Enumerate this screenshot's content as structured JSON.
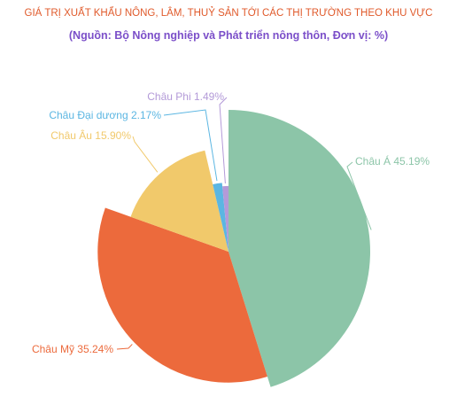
{
  "chart_data": {
    "type": "pie",
    "title": "GIÁ TRỊ XUẤT KHẨU NÔNG, LÂM, THUỶ SẢN TỚI CÁC THỊ TRƯỜNG THEO KHU VỰC",
    "subtitle": "(Nguồn:  Bộ Nông nghiệp và Phát triển nông thôn, Đơn vị: %)",
    "slices": [
      {
        "name": "Châu Á",
        "value": 45.19,
        "label": "Châu Á 45.19%",
        "color": "#8cc5a8"
      },
      {
        "name": "Châu Mỹ",
        "value": 35.24,
        "label": "Châu Mỹ 35.24%",
        "color": "#ec6a3c"
      },
      {
        "name": "Châu Âu",
        "value": 15.9,
        "label": "Châu Âu 15.90%",
        "color": "#f1c96b"
      },
      {
        "name": "Châu Đại dương",
        "value": 2.17,
        "label": "Châu Đại dương 2.17%",
        "color": "#5bb6e2"
      },
      {
        "name": "Châu Phi",
        "value": 1.49,
        "label": "Châu Phi 1.49%",
        "color": "#b39ad8"
      }
    ]
  }
}
